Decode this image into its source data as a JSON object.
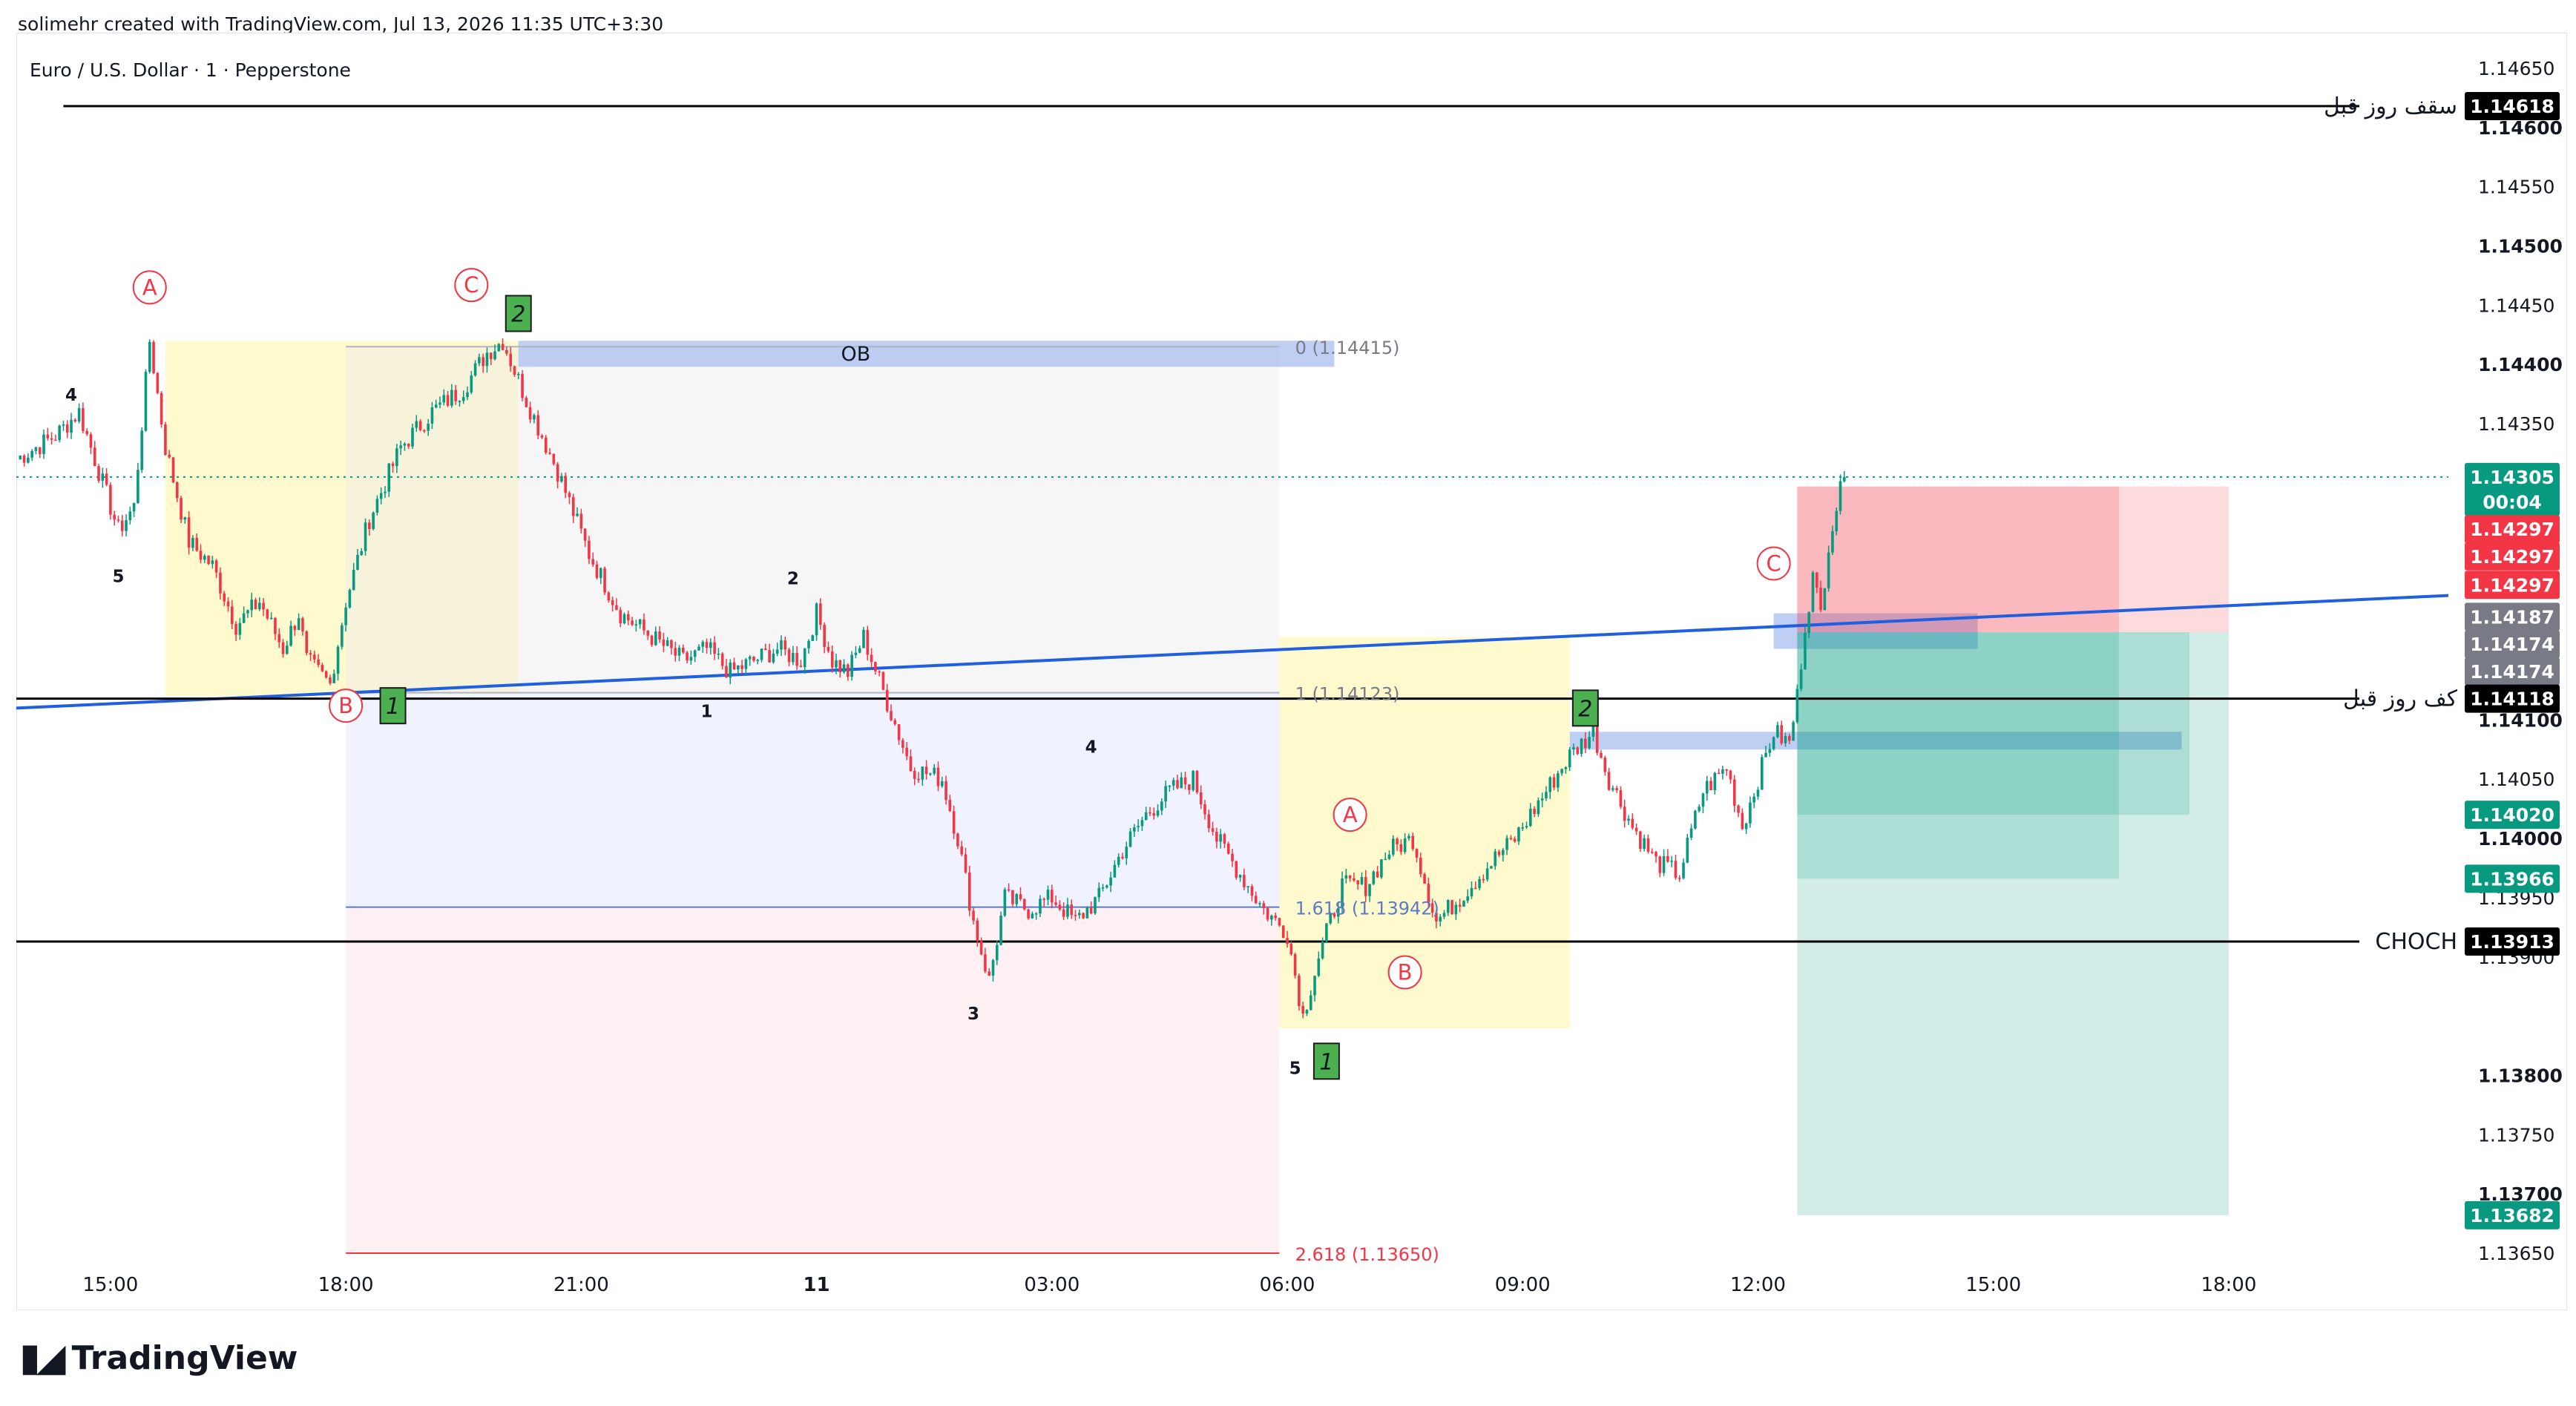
{
  "header": {
    "credit": "solimehr created with TradingView.com, Jul 13, 2026 11:35 UTC+3:30"
  },
  "branding": {
    "logo_text": "TradingView",
    "logo_icon": "tradingview-logo-icon"
  },
  "colors": {
    "up": "#089981",
    "down": "#f23645",
    "trend": "#1f5fe0",
    "ob": "#a9bff0",
    "yellow": "#fff9c4",
    "fib_blue": "#eef2ff",
    "fib_red": "#fff0f2",
    "wave_red": "#f23645",
    "wave_green": "#4caf50",
    "last_price": "#089981"
  },
  "chart_data": {
    "type": "candlestick",
    "title": "Euro / U.S. Dollar · 1 · Pepperstone",
    "symbol": "EURUSD",
    "timeframe": "1",
    "broker": "Pepperstone",
    "x_ticks": [
      "15:00",
      "18:00",
      "21:00",
      "11",
      "03:00",
      "06:00",
      "09:00",
      "12:00",
      "15:00",
      "18:00"
    ],
    "x_tick_hours": [
      15,
      18,
      21,
      24,
      27,
      30,
      33,
      36,
      39,
      42
    ],
    "x_range_hours": [
      13.8,
      44.8
    ],
    "y_ticks": [
      "1.14650",
      "1.14600",
      "1.14550",
      "1.14500",
      "1.14450",
      "1.14400",
      "1.14350",
      "1.14100",
      "1.14050",
      "1.14000",
      "1.13950",
      "1.13900",
      "1.13800",
      "1.13750",
      "1.13700",
      "1.13650"
    ],
    "y_bold_ticks": [
      "1.14600",
      "1.14500",
      "1.14400",
      "1.14100",
      "1.14000",
      "1.13800",
      "1.13700"
    ],
    "ylim": [
      1.1364,
      1.1468
    ],
    "grid": false,
    "price_path": [
      [
        13.8,
        1.1432
      ],
      [
        14.3,
        1.1434
      ],
      [
        14.6,
        1.1436
      ],
      [
        14.9,
        1.143
      ],
      [
        15.1,
        1.1426
      ],
      [
        15.3,
        1.1428
      ],
      [
        15.5,
        1.1442
      ],
      [
        15.7,
        1.1433
      ],
      [
        16.0,
        1.1425
      ],
      [
        16.3,
        1.1423
      ],
      [
        16.6,
        1.1418
      ],
      [
        16.9,
        1.142
      ],
      [
        17.2,
        1.1416
      ],
      [
        17.4,
        1.1419
      ],
      [
        17.5,
        1.1415
      ],
      [
        17.8,
        1.1413
      ],
      [
        18.0,
        1.142
      ],
      [
        18.3,
        1.1427
      ],
      [
        18.7,
        1.1433
      ],
      [
        19.1,
        1.1436
      ],
      [
        19.5,
        1.1438
      ],
      [
        19.8,
        1.1441
      ],
      [
        20.0,
        1.1442
      ],
      [
        20.3,
        1.1437
      ],
      [
        20.7,
        1.1431
      ],
      [
        21.1,
        1.1424
      ],
      [
        21.5,
        1.1419
      ],
      [
        21.9,
        1.1417
      ],
      [
        22.3,
        1.1415
      ],
      [
        22.6,
        1.1416
      ],
      [
        22.9,
        1.1414
      ],
      [
        23.2,
        1.1415
      ],
      [
        23.5,
        1.1416
      ],
      [
        23.8,
        1.1415
      ],
      [
        24.0,
        1.1419
      ],
      [
        24.2,
        1.1415
      ],
      [
        24.4,
        1.1414
      ],
      [
        24.6,
        1.1417
      ],
      [
        25.2,
        1.1406
      ],
      [
        25.6,
        1.1405
      ],
      [
        25.8,
        1.14
      ],
      [
        26.0,
        1.1393
      ],
      [
        26.2,
        1.1388
      ],
      [
        26.4,
        1.1395
      ],
      [
        26.7,
        1.1394
      ],
      [
        27.0,
        1.1395
      ],
      [
        27.3,
        1.1393
      ],
      [
        27.6,
        1.1395
      ],
      [
        27.9,
        1.1399
      ],
      [
        28.2,
        1.1402
      ],
      [
        28.5,
        1.1404
      ],
      [
        28.8,
        1.1405
      ],
      [
        29.1,
        1.14
      ],
      [
        29.4,
        1.1397
      ],
      [
        29.7,
        1.1394
      ],
      [
        30.0,
        1.1392
      ],
      [
        30.2,
        1.1385
      ],
      [
        30.4,
        1.139
      ],
      [
        30.7,
        1.1396
      ],
      [
        31.0,
        1.1396
      ],
      [
        31.3,
        1.1399
      ],
      [
        31.6,
        1.14
      ],
      [
        31.9,
        1.1393
      ],
      [
        32.2,
        1.1395
      ],
      [
        32.6,
        1.1398
      ],
      [
        32.9,
        1.14
      ],
      [
        33.2,
        1.1403
      ],
      [
        33.6,
        1.1407
      ],
      [
        33.9,
        1.1409
      ],
      [
        34.1,
        1.1405
      ],
      [
        34.4,
        1.1401
      ],
      [
        34.7,
        1.1398
      ],
      [
        35.0,
        1.1397
      ],
      [
        35.3,
        1.1404
      ],
      [
        35.6,
        1.1406
      ],
      [
        35.8,
        1.1401
      ],
      [
        36.0,
        1.1405
      ],
      [
        36.2,
        1.1409
      ],
      [
        36.4,
        1.1408
      ],
      [
        36.5,
        1.1412
      ],
      [
        36.6,
        1.1418
      ],
      [
        36.7,
        1.1422
      ],
      [
        36.8,
        1.1419
      ],
      [
        36.9,
        1.1425
      ],
      [
        37.0,
        1.1428
      ],
      [
        37.1,
        1.14305
      ]
    ],
    "zones": [
      {
        "kind": "yellow",
        "x": [
          15.7,
          20.2
        ],
        "y": [
          1.1442,
          1.1412
        ]
      },
      {
        "kind": "yellow",
        "x": [
          29.9,
          33.6
        ],
        "y": [
          1.1417,
          1.1384
        ]
      },
      {
        "kind": "fib_grey",
        "x": [
          18.0,
          29.9
        ],
        "y": [
          1.14415,
          1.14123
        ]
      },
      {
        "kind": "fib_blue",
        "x": [
          18.0,
          29.9
        ],
        "y": [
          1.14123,
          1.13942
        ]
      },
      {
        "kind": "fib_red",
        "x": [
          18.0,
          29.9
        ],
        "y": [
          1.13942,
          1.1365
        ]
      },
      {
        "kind": "ob",
        "x": [
          20.2,
          30.6
        ],
        "y": [
          1.1442,
          1.14398
        ]
      },
      {
        "kind": "ob",
        "x": [
          33.6,
          41.4
        ],
        "y": [
          1.1409,
          1.14075
        ]
      },
      {
        "kind": "ob",
        "x": [
          36.2,
          38.8
        ],
        "y": [
          1.1419,
          1.1416
        ]
      },
      {
        "kind": "sl",
        "x": [
          36.5,
          40.6
        ],
        "y": [
          1.14297,
          1.14174
        ]
      },
      {
        "kind": "sl_light",
        "x": [
          40.6,
          42.0
        ],
        "y": [
          1.14297,
          1.14174
        ]
      },
      {
        "kind": "tp",
        "x": [
          36.5,
          41.5
        ],
        "y": [
          1.14174,
          1.1402
        ]
      },
      {
        "kind": "tp",
        "x": [
          36.5,
          40.6
        ],
        "y": [
          1.14174,
          1.13966
        ]
      },
      {
        "kind": "tp",
        "x": [
          36.5,
          42.0
        ],
        "y": [
          1.14174,
          1.13682
        ]
      },
      {
        "kind": "fib_line",
        "x": [
          29.9,
          30.0
        ],
        "y": [
          1.13942,
          1.13942
        ]
      }
    ],
    "levels": [
      {
        "price": 1.14618,
        "label": "سقف روز قبل",
        "x": [
          14.4,
          44.0
        ]
      },
      {
        "price": 1.14118,
        "label": "کف روز قبل",
        "x": [
          13.8,
          44.0
        ]
      },
      {
        "price": 1.13913,
        "label": "CHOCH",
        "x": [
          13.8,
          44.0
        ]
      }
    ],
    "trendline": {
      "from": [
        13.8,
        1.1411
      ],
      "to": [
        44.8,
        1.14205
      ]
    },
    "last_price_dotted": 1.14305,
    "fib_labels": [
      {
        "text": "0 (1.14415)",
        "x": 30.1,
        "price": 1.14415,
        "color": "#787b86"
      },
      {
        "text": "1 (1.14123)",
        "x": 30.1,
        "price": 1.14123,
        "color": "#787b86"
      },
      {
        "text": "1.618 (1.13942)",
        "x": 30.1,
        "price": 1.13942,
        "color": "#5b7cc4"
      },
      {
        "text": "2.618 (1.13650)",
        "x": 30.1,
        "price": 1.1365,
        "color": "#f23645"
      }
    ],
    "ob_label": {
      "text": "OB",
      "x": 24.5,
      "price": 1.14409
    },
    "wave_labels": [
      {
        "text": "4",
        "x": 14.5,
        "price": 1.14375,
        "style": "plain"
      },
      {
        "text": "5",
        "x": 15.1,
        "price": 1.14222,
        "style": "plain"
      },
      {
        "text": "2",
        "x": 23.7,
        "price": 1.1422,
        "style": "plain"
      },
      {
        "text": "1",
        "x": 22.6,
        "price": 1.14108,
        "style": "plain"
      },
      {
        "text": "4",
        "x": 27.5,
        "price": 1.14078,
        "style": "plain"
      },
      {
        "text": "3",
        "x": 26.0,
        "price": 1.13853,
        "style": "plain"
      },
      {
        "text": "5",
        "x": 30.1,
        "price": 1.13807,
        "style": "plain"
      },
      {
        "text": "A",
        "x": 15.5,
        "price": 1.14465,
        "style": "circle"
      },
      {
        "text": "C",
        "x": 19.6,
        "price": 1.14467,
        "style": "circle"
      },
      {
        "text": "B",
        "x": 18.0,
        "price": 1.14112,
        "style": "circle"
      },
      {
        "text": "A",
        "x": 30.8,
        "price": 1.1402,
        "style": "circle"
      },
      {
        "text": "B",
        "x": 31.5,
        "price": 1.13887,
        "style": "circle"
      },
      {
        "text": "C",
        "x": 36.2,
        "price": 1.14232,
        "style": "circle"
      },
      {
        "text": "2",
        "x": 20.2,
        "price": 1.14443,
        "style": "box"
      },
      {
        "text": "1",
        "x": 18.6,
        "price": 1.14112,
        "style": "box"
      },
      {
        "text": "1",
        "x": 30.5,
        "price": 1.13812,
        "style": "box"
      },
      {
        "text": "2",
        "x": 33.8,
        "price": 1.1411,
        "style": "box"
      }
    ],
    "price_tags": [
      {
        "text": "1.14618",
        "price": 1.14618,
        "bg": "#000000"
      },
      {
        "text": "1.14305",
        "price": 1.14305,
        "bg": "#089981"
      },
      {
        "text": "00:04",
        "price": 1.14284,
        "bg": "#089981"
      },
      {
        "text": "1.14297",
        "price": 1.14261,
        "bg": "#f23645"
      },
      {
        "text": "1.14297",
        "price": 1.14238,
        "bg": "#f23645"
      },
      {
        "text": "1.14297",
        "price": 1.14214,
        "bg": "#f23645"
      },
      {
        "text": "1.14187",
        "price": 1.14187,
        "bg": "#787b86"
      },
      {
        "text": "1.14174",
        "price": 1.14164,
        "bg": "#787b86"
      },
      {
        "text": "1.14174",
        "price": 1.14141,
        "bg": "#787b86"
      },
      {
        "text": "1.14118",
        "price": 1.14118,
        "bg": "#000000"
      },
      {
        "text": "1.14020",
        "price": 1.1402,
        "bg": "#089981"
      },
      {
        "text": "1.13966",
        "price": 1.13966,
        "bg": "#089981"
      },
      {
        "text": "1.13913",
        "price": 1.13913,
        "bg": "#000000"
      },
      {
        "text": "1.13682",
        "price": 1.13682,
        "bg": "#089981"
      }
    ]
  }
}
